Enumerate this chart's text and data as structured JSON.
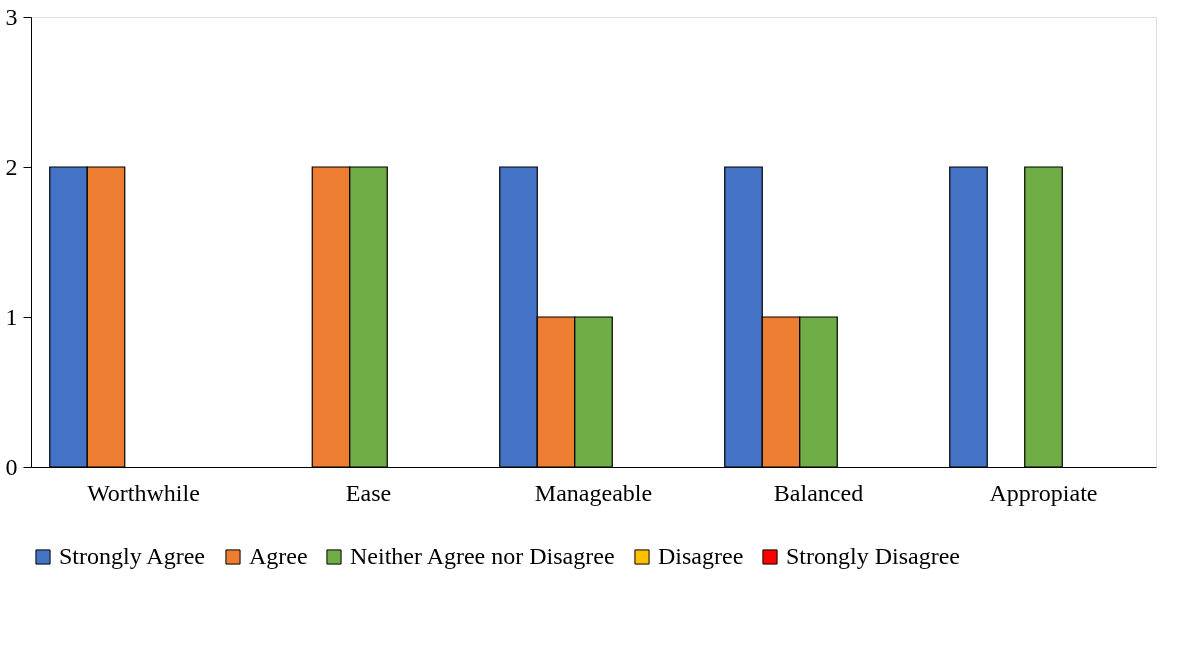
{
  "chart_data": {
    "type": "bar",
    "categories": [
      "Worthwhile",
      "Ease",
      "Manageable",
      "Balanced",
      "Appropiate"
    ],
    "series": [
      {
        "name": "Strongly Agree",
        "color": "#4472c4",
        "values": [
          2,
          0,
          2,
          2,
          2
        ]
      },
      {
        "name": "Agree",
        "color": "#ed7d31",
        "values": [
          2,
          2,
          1,
          1,
          0
        ]
      },
      {
        "name": "Neither Agree nor Disagree",
        "color": "#70ad47",
        "values": [
          0,
          2,
          1,
          1,
          2
        ]
      },
      {
        "name": "Disagree",
        "color": "#ffc000",
        "values": [
          0,
          0,
          0,
          0,
          0
        ]
      },
      {
        "name": "Strongly Disagree",
        "color": "#ff0000",
        "values": [
          0,
          0,
          0,
          0,
          0
        ]
      }
    ],
    "ylim": [
      0,
      3
    ],
    "yticks": [
      0,
      1,
      2,
      3
    ],
    "grid": false,
    "legend": "bottom"
  }
}
